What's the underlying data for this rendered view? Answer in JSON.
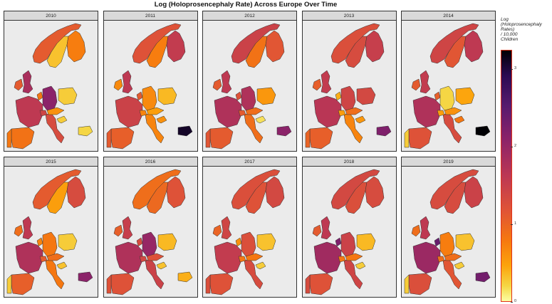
{
  "title": "Log (Holoprosencephaly Rate) Across Europe Over Time",
  "legend": {
    "title_lines": [
      "Log",
      "(Holoprosencephaly",
      "Rates)",
      "/ 10,000",
      "Children"
    ],
    "ticks": [
      {
        "label": "3",
        "value": 3
      },
      {
        "label": "2",
        "value": 2
      },
      {
        "label": "1",
        "value": 1
      },
      {
        "label": "0",
        "value": 0
      }
    ],
    "range": [
      0,
      3.25
    ]
  },
  "panels": [
    {
      "year": "2010",
      "values": {
        "norway": 1.1,
        "sweden": 0.3,
        "finland": 0.75,
        "uk": 1.8,
        "ireland": 1.1,
        "netherlands": 0.8,
        "germany": 2.1,
        "poland": 0.25,
        "france": 1.6,
        "spain": 0.85,
        "portugal": 0.8,
        "italy": 1.3,
        "switzerland": 1.4,
        "austria": 0.6,
        "croatia": 0.25,
        "hungary": null,
        "bulgaria": 0.2
      }
    },
    {
      "year": "2011",
      "values": {
        "norway": 1.2,
        "sweden": 0.75,
        "finland": 1.55,
        "uk": 1.6,
        "ireland": 0.65,
        "netherlands": 1.1,
        "germany": 0.65,
        "poland": 0.35,
        "france": 1.45,
        "spain": 1.05,
        "portugal": 1.1,
        "italy": 0.7,
        "switzerland": 0.7,
        "austria": 0.5,
        "croatia": 0.6,
        "hungary": null,
        "bulgaria": 3.1
      }
    },
    {
      "year": "2012",
      "values": {
        "norway": 1.45,
        "sweden": 0.85,
        "finland": 1.15,
        "uk": 1.6,
        "ireland": 1.1,
        "netherlands": 1.2,
        "germany": 1.75,
        "poland": 0.55,
        "france": 1.75,
        "spain": 1.1,
        "portugal": 1.15,
        "italy": 0.9,
        "switzerland": 1.1,
        "austria": 0.9,
        "croatia": 0.15,
        "hungary": null,
        "bulgaria": 2.1
      }
    },
    {
      "year": "2013",
      "values": {
        "norway": 1.25,
        "sweden": 1.3,
        "finland": 1.5,
        "uk": 1.55,
        "ireland": 1.05,
        "netherlands": 0.4,
        "germany": 1.4,
        "poland": 1.35,
        "france": 1.65,
        "spain": 1.05,
        "portugal": 1.0,
        "italy": 0.7,
        "switzerland": 0.5,
        "austria": 0.9,
        "croatia": 0.55,
        "hungary": null,
        "bulgaria": 2.2
      }
    },
    {
      "year": "2014",
      "values": {
        "norway": 1.4,
        "sweden": 1.15,
        "finland": 1.6,
        "uk": 1.55,
        "ireland": 1.1,
        "netherlands": 1.05,
        "germany": 0.2,
        "poland": 0.45,
        "france": 1.75,
        "spain": 1.2,
        "portugal": 0.25,
        "italy": 1.3,
        "switzerland": 0.5,
        "austria": 0.6,
        "croatia": 0.8,
        "hungary": null,
        "bulgaria": 3.25
      }
    },
    {
      "year": "2015",
      "values": {
        "norway": 1.1,
        "sweden": 0.5,
        "finland": 1.3,
        "uk": 1.6,
        "ireland": 0.9,
        "netherlands": 0.7,
        "germany": 0.8,
        "poland": 0.25,
        "france": 1.75,
        "spain": 1.05,
        "portugal": 0.25,
        "italy": 0.8,
        "switzerland": 1.1,
        "austria": 0.9,
        "croatia": 0.3,
        "hungary": null,
        "bulgaria": 2.1
      }
    },
    {
      "year": "2016",
      "values": {
        "norway": 0.9,
        "sweden": 0.95,
        "finland": 1.2,
        "uk": 1.5,
        "ireland": 1.05,
        "netherlands": 1.3,
        "germany": 2.0,
        "poland": 0.35,
        "france": 1.75,
        "spain": 1.2,
        "portugal": 1.2,
        "italy": 1.45,
        "switzerland": 1.35,
        "austria": 1.2,
        "croatia": 0.3,
        "hungary": null,
        "bulgaria": 0.4
      }
    },
    {
      "year": "2017",
      "values": {
        "norway": 1.25,
        "sweden": 1.2,
        "finland": 1.35,
        "uk": 1.4,
        "ireland": 1.0,
        "netherlands": 0.6,
        "germany": 1.25,
        "poland": 0.3,
        "france": 1.55,
        "spain": 1.2,
        "portugal": 1.25,
        "italy": 1.3,
        "switzerland": 0.8,
        "austria": 0.8,
        "croatia": 0.25,
        "hungary": null,
        "bulgaria": null
      }
    },
    {
      "year": "2018",
      "values": {
        "norway": 1.35,
        "sweden": 1.25,
        "finland": 1.3,
        "uk": 1.6,
        "ireland": 1.1,
        "netherlands": 2.2,
        "germany": 1.45,
        "poland": 0.35,
        "france": 1.9,
        "spain": 1.2,
        "portugal": 1.3,
        "italy": 1.4,
        "switzerland": 0.8,
        "austria": 0.8,
        "croatia": 0.25,
        "hungary": null,
        "bulgaria": null
      }
    },
    {
      "year": "2019",
      "values": {
        "norway": 1.3,
        "sweden": 1.3,
        "finland": 1.45,
        "uk": 1.6,
        "ireland": 0.9,
        "netherlands": 2.4,
        "germany": 0.75,
        "poland": 0.3,
        "france": 1.95,
        "spain": 1.25,
        "portugal": 0.25,
        "italy": 1.15,
        "switzerland": 0.9,
        "austria": 0.9,
        "croatia": 0.25,
        "hungary": null,
        "bulgaria": 2.3
      }
    }
  ]
}
